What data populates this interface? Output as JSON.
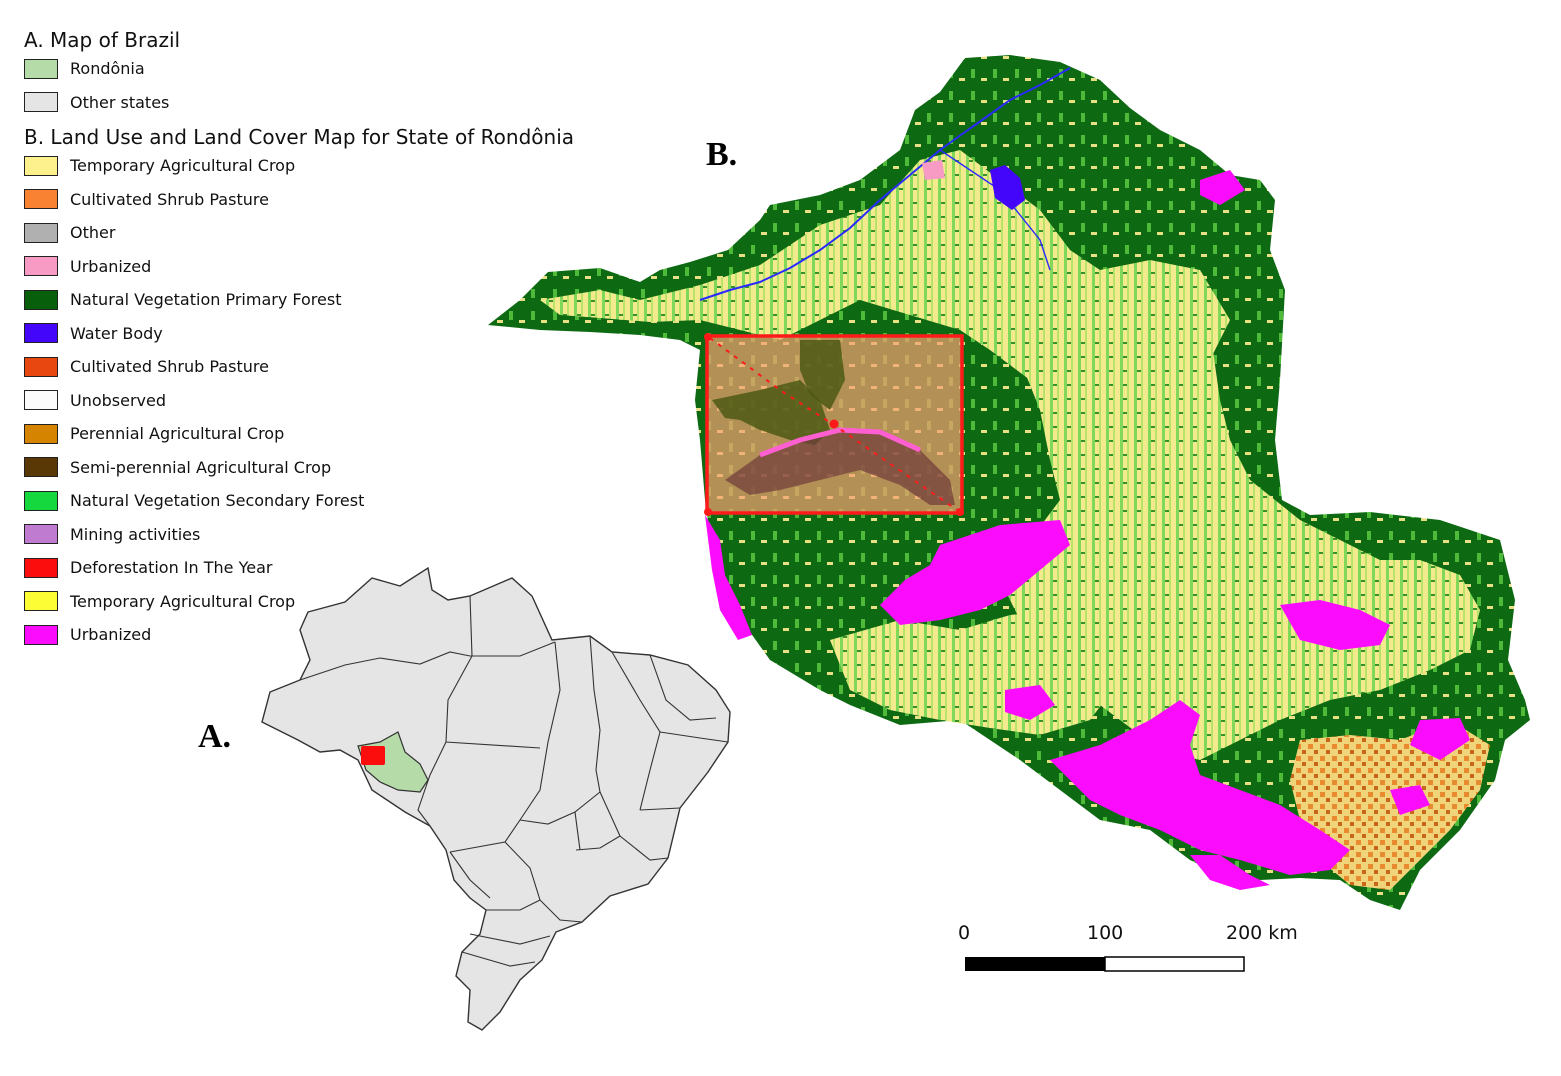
{
  "legend": {
    "section_a_title": "A. Map of Brazil",
    "section_a_items": [
      {
        "label": "Rondônia",
        "color": "#b5dba8"
      },
      {
        "label": "Other states",
        "color": "#e5e5e5"
      }
    ],
    "section_b_title": "B. Land Use and Land Cover Map for State of Rondônia",
    "section_b_items": [
      {
        "label": "Temporary Agricultural Crop",
        "color": "#fdf18d"
      },
      {
        "label": "Cultivated Shrub Pasture",
        "color": "#f98232"
      },
      {
        "label": "Other",
        "color": "#b0b0b0"
      },
      {
        "label": "Urbanized",
        "color": "#f79ac4"
      },
      {
        "label": "Natural Vegetation Primary Forest",
        "color": "#075e0b"
      },
      {
        "label": "Water Body",
        "color": "#4306fa"
      },
      {
        "label": "Cultivated Shrub Pasture",
        "color": "#e84710"
      },
      {
        "label": "Unobserved",
        "color": "#fbfbfb"
      },
      {
        "label": "Perennial Agricultural Crop",
        "color": "#d58400"
      },
      {
        "label": "Semi-perennial Agricultural Crop",
        "color": "#5a3806"
      },
      {
        "label": "Natural Vegetation Secondary Forest",
        "color": "#14d83d"
      },
      {
        "label": "Mining activities",
        "color": "#bf7bd0"
      },
      {
        "label": "Deforestation In The Year",
        "color": "#fb0d0d"
      },
      {
        "label": "Temporary Agricultural Crop",
        "color": "#fdfd35"
      },
      {
        "label": "Urbanized",
        "color": "#fc0cfc"
      }
    ]
  },
  "panels": {
    "a_label": "A.",
    "b_label": "B."
  },
  "scale_bar": {
    "labels": [
      "0",
      "100",
      "200 km"
    ]
  }
}
